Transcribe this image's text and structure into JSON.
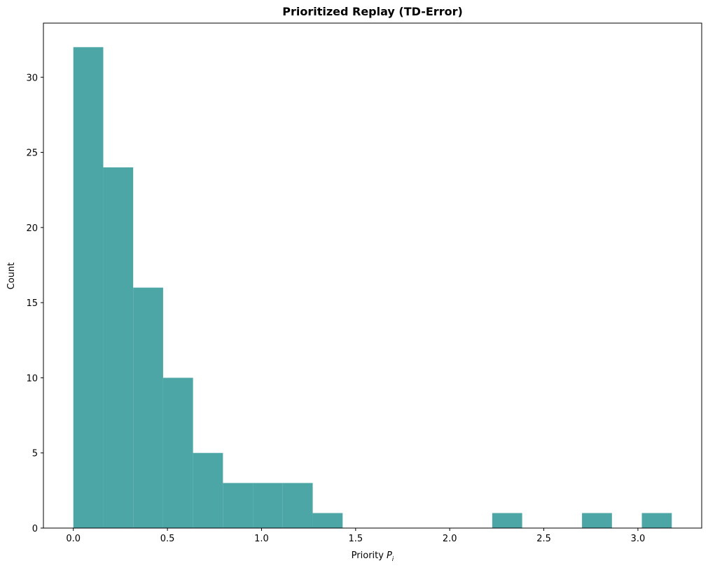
{
  "chart_data": {
    "type": "histogram",
    "title": "Prioritized Replay (TD-Error)",
    "x_label": "Priority",
    "x_label_math": {
      "base": "P",
      "sub": "i"
    },
    "y_label": "Count",
    "bins": [
      0,
      0.159,
      0.318,
      0.477,
      0.636,
      0.795,
      0.954,
      1.113,
      1.272,
      1.431,
      1.59,
      1.749,
      1.908,
      2.067,
      2.226,
      2.385,
      2.544,
      2.703,
      2.862,
      3.021,
      3.18
    ],
    "values": [
      32,
      24,
      16,
      10,
      5,
      3,
      3,
      3,
      1,
      0,
      0,
      0,
      0,
      0,
      1,
      0,
      0,
      1,
      0,
      1
    ],
    "color": "#4ca6a6",
    "xlim": [
      -0.159,
      3.339
    ],
    "ylim": [
      0,
      33.6
    ],
    "xticks": [
      {
        "value": 0,
        "label": "0.0"
      },
      0.5,
      {
        "value": 1,
        "label": "1.0"
      },
      1.5,
      {
        "value": 2,
        "label": "2.0"
      },
      2.5,
      {
        "value": 3,
        "label": "3.0"
      }
    ],
    "yticks": [
      0,
      5,
      10,
      15,
      20,
      25,
      30
    ]
  }
}
